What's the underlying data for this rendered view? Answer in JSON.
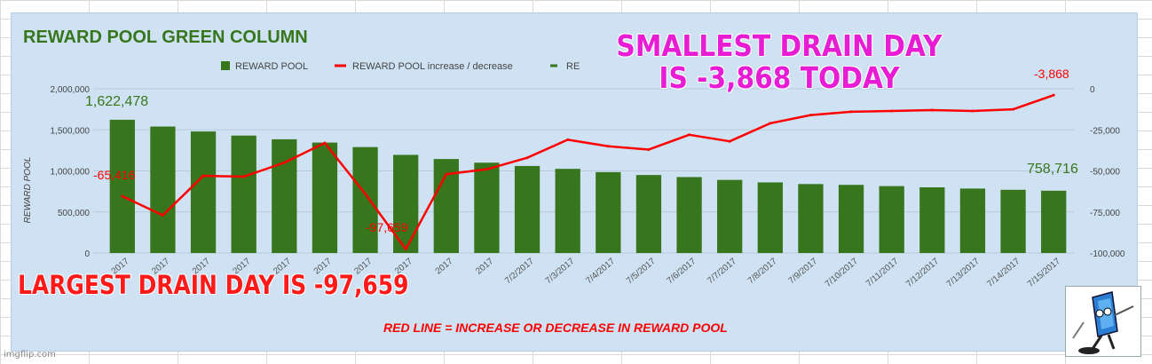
{
  "chart_data": {
    "type": "bar+line",
    "title": "REWARD POOL GREEN COLUMN",
    "ylabel": "REWARD POOL",
    "ylim": [
      0,
      2000000
    ],
    "y_ticks": [
      "2,000,000",
      "1,500,000",
      "1,000,000",
      "500,000",
      "0"
    ],
    "y2lim": [
      -100000,
      0
    ],
    "y2_ticks": [
      "0",
      "-25,000",
      "-50,000",
      "-75,000",
      "-100,000"
    ],
    "categories": [
      "2017",
      "2017",
      "2017",
      "2017",
      "2017",
      "2017",
      "2017",
      "2017",
      "2017",
      "2017",
      "7/2/2017",
      "7/3/2017",
      "7/4/2017",
      "7/5/2017",
      "7/6/2017",
      "7/7/2017",
      "7/8/2017",
      "7/9/2017",
      "7/10/2017",
      "7/11/2017",
      "7/12/2017",
      "7/13/2017",
      "7/14/2017",
      "7/15/2017"
    ],
    "category_labels": [
      "2017",
      "2017",
      "2017",
      "2017",
      "2017",
      "2017",
      "2017",
      "2017",
      "2017",
      "2017",
      "7/2/2017",
      "7/3/2017",
      "7/4/2017",
      "7/5/2017",
      "7/6/2017",
      "7/7/2017",
      "7/8/2017",
      "7/9/2017",
      "7/10/2017",
      "7/11/2017",
      "7/12/2017",
      "7/13/2017",
      "7/14/2017",
      "7/15/2017"
    ],
    "legend": [
      "REWARD POOL",
      "REWARD POOL increase / decrease",
      "RE"
    ],
    "legend_position": "top",
    "series": [
      {
        "name": "REWARD POOL",
        "type": "bar",
        "color": "#38761d",
        "values": [
          1622478,
          1540000,
          1480000,
          1430000,
          1385000,
          1345000,
          1290000,
          1195000,
          1145000,
          1100000,
          1060000,
          1025000,
          985000,
          950000,
          925000,
          890000,
          860000,
          840000,
          830000,
          815000,
          800000,
          785000,
          770000,
          758716
        ]
      },
      {
        "name": "REWARD POOL increase / decrease",
        "type": "line",
        "color": "#ff0000",
        "values": [
          -65416,
          -77000,
          -53000,
          -53500,
          -45000,
          -33000,
          -64000,
          -97659,
          -52000,
          -49000,
          -42000,
          -31000,
          -35000,
          -37000,
          -28000,
          -32000,
          -21000,
          -16000,
          -14000,
          -13500,
          -13000,
          -13500,
          -12500,
          -3868
        ]
      }
    ],
    "annotations": {
      "max_pool": "1,622,478",
      "min_pool": "758,716",
      "first_change": "-65,416",
      "largest_drain": "-97,659",
      "latest_change": "-3,868"
    },
    "caption": "RED LINE = INCREASE OR DECREASE IN REWARD POOL"
  },
  "overlay": {
    "smallest_line1": "SMALLEST DRAIN DAY",
    "smallest_line2": "IS  -3,868  TODAY",
    "largest": "LARGEST DRAIN DAY IS -97,659"
  },
  "watermark": "imgflip.com",
  "colors": {
    "bar": "#38761d",
    "line": "#ff0000",
    "title": "#38761d",
    "magenta": "#e81cd4",
    "panel": "#cfe2f3"
  }
}
